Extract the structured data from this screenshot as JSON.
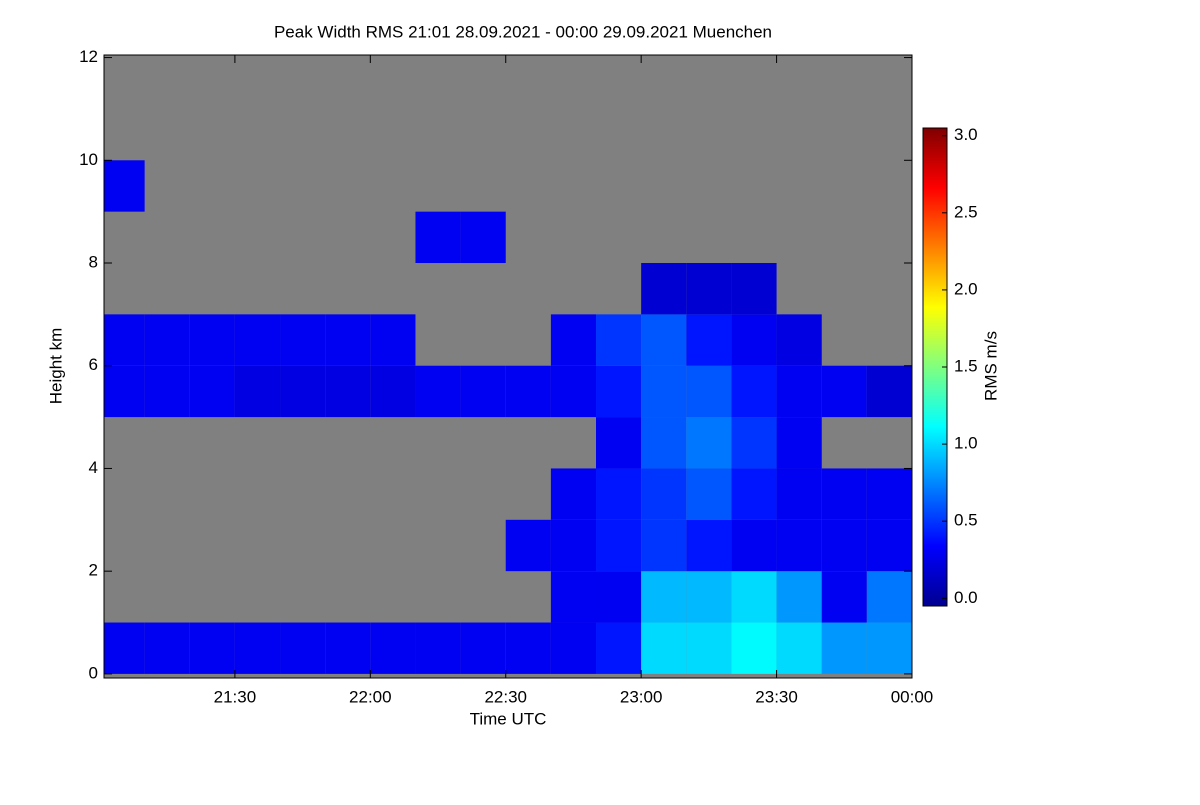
{
  "chart_data": {
    "type": "heatmap",
    "title": "Peak Width RMS   21:01 28.09.2021 - 00:00 29.09.2021 Muenchen",
    "x_label": "Time UTC",
    "y_label": "Height km",
    "colorbar_label": "RMS m/s",
    "colormap": "jet",
    "missing_color": "#808080",
    "xlim": [
      21.0167,
      24.0
    ],
    "xticks": [
      {
        "value": 21.5,
        "label": "21:30"
      },
      {
        "value": 22.0,
        "label": "22:00"
      },
      {
        "value": 22.5,
        "label": "22:30"
      },
      {
        "value": 23.0,
        "label": "23:00"
      },
      {
        "value": 23.5,
        "label": "23:30"
      },
      {
        "value": 24.0,
        "label": "00:00"
      }
    ],
    "ylim": [
      -0.08,
      12.05
    ],
    "yticks": [
      0,
      2,
      4,
      6,
      8,
      10,
      12
    ],
    "clim": [
      -0.05,
      3.05
    ],
    "cticks": [
      {
        "value": 0,
        "label": "0.0"
      },
      {
        "value": 0.5,
        "label": "0.5"
      },
      {
        "value": 1,
        "label": "1.0"
      },
      {
        "value": 1.5,
        "label": "1.5"
      },
      {
        "value": 2,
        "label": "2.0"
      },
      {
        "value": 2.5,
        "label": "2.5"
      },
      {
        "value": 3,
        "label": "3.0"
      }
    ],
    "x_edges": [
      21.0,
      21.1667,
      21.3333,
      21.5,
      21.6667,
      21.8333,
      22.0,
      22.1667,
      22.3333,
      22.5,
      22.6667,
      22.8333,
      23.0,
      23.1667,
      23.3333,
      23.5,
      23.6667,
      23.8333,
      24.0
    ],
    "y_edges": [
      0,
      1,
      2,
      3,
      4,
      5,
      6,
      7,
      8,
      9,
      10,
      11,
      12
    ],
    "z": [
      [
        0.3,
        0.3,
        0.3,
        0.3,
        0.3,
        0.3,
        0.3,
        0.3,
        0.3,
        0.3,
        0.3,
        0.4,
        1.0,
        1.0,
        1.1,
        1.0,
        0.8,
        0.8
      ],
      [
        null,
        null,
        null,
        null,
        null,
        null,
        null,
        null,
        null,
        null,
        0.3,
        0.3,
        0.9,
        0.9,
        1.0,
        0.8,
        0.3,
        0.7
      ],
      [
        null,
        null,
        null,
        null,
        null,
        null,
        null,
        null,
        null,
        0.3,
        0.3,
        0.4,
        0.5,
        0.4,
        0.3,
        0.3,
        0.3,
        0.3
      ],
      [
        null,
        null,
        null,
        null,
        null,
        null,
        null,
        null,
        null,
        null,
        0.3,
        0.4,
        0.5,
        0.6,
        0.4,
        0.3,
        0.3,
        0.3
      ],
      [
        null,
        null,
        null,
        null,
        null,
        null,
        null,
        null,
        null,
        null,
        null,
        0.3,
        0.6,
        0.7,
        0.5,
        0.3,
        null,
        null
      ],
      [
        0.3,
        0.3,
        0.3,
        0.25,
        0.25,
        0.25,
        0.25,
        0.3,
        0.3,
        0.3,
        0.3,
        0.4,
        0.6,
        0.6,
        0.4,
        0.3,
        0.3,
        0.2
      ],
      [
        0.3,
        0.3,
        0.3,
        0.3,
        0.3,
        0.3,
        0.3,
        null,
        null,
        null,
        0.3,
        0.5,
        0.6,
        0.4,
        0.3,
        0.25,
        null,
        null
      ],
      [
        null,
        null,
        null,
        null,
        null,
        null,
        null,
        null,
        null,
        null,
        null,
        null,
        0.2,
        0.2,
        0.2,
        null,
        null,
        null
      ],
      [
        null,
        null,
        null,
        null,
        null,
        null,
        null,
        0.3,
        0.3,
        null,
        null,
        null,
        null,
        null,
        null,
        null,
        null,
        null
      ],
      [
        0.3,
        null,
        null,
        null,
        null,
        null,
        null,
        null,
        null,
        null,
        null,
        null,
        null,
        null,
        null,
        null,
        null,
        null
      ],
      [
        null,
        null,
        null,
        null,
        null,
        null,
        null,
        null,
        null,
        null,
        null,
        null,
        null,
        null,
        null,
        null,
        null,
        null
      ],
      [
        null,
        null,
        null,
        null,
        null,
        null,
        null,
        null,
        null,
        null,
        null,
        null,
        null,
        null,
        null,
        null,
        null,
        null
      ]
    ]
  }
}
